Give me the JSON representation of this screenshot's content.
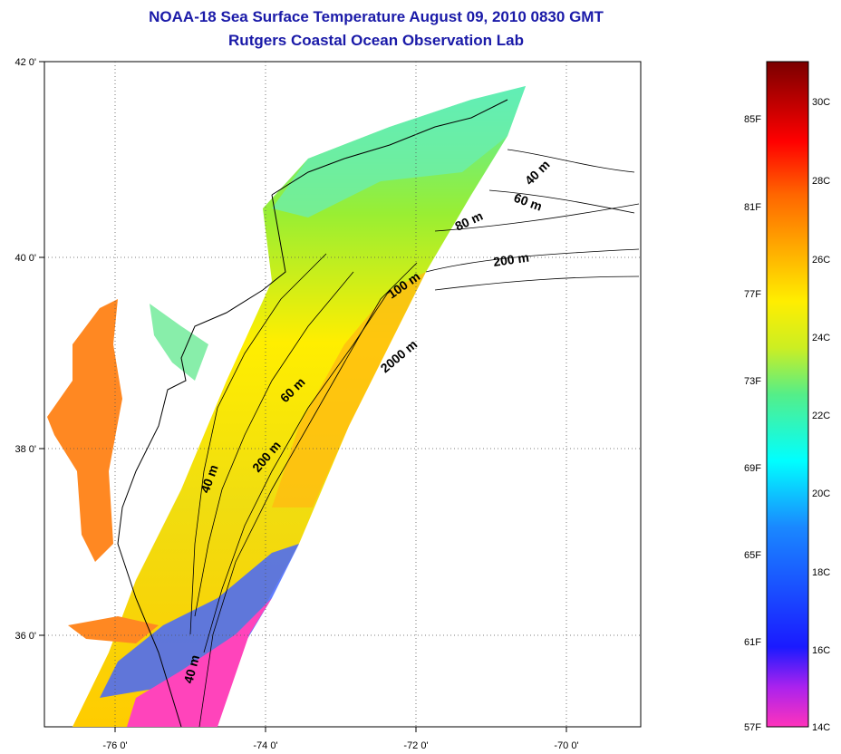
{
  "header": {
    "title": "NOAA-18 Sea Surface Temperature August 09, 2010 0830 GMT",
    "subtitle": "Rutgers Coastal Ocean Observation Lab"
  },
  "map": {
    "lon_ticks": [
      "-76 0'",
      "-74 0'",
      "-72 0'",
      "-70 0'"
    ],
    "lat_ticks": [
      "42 0'",
      "40 0'",
      "38 0'",
      "36 0'"
    ],
    "isobath_labels": [
      "40 m",
      "60 m",
      "80 m",
      "200 m",
      "100 m",
      "2000 m",
      "60 m",
      "200 m",
      "40 m",
      "40 m"
    ]
  },
  "colorbar": {
    "fahrenheit": [
      "85F",
      "81F",
      "77F",
      "73F",
      "69F",
      "65F",
      "61F",
      "57F"
    ],
    "celsius": [
      "30C",
      "28C",
      "26C",
      "24C",
      "22C",
      "20C",
      "18C",
      "16C",
      "14C"
    ],
    "stops": [
      "#ff33bb",
      "#8822ee",
      "#1a1aff",
      "#1a66ff",
      "#00ffff",
      "#55ee88",
      "#ccee22",
      "#ffee00",
      "#ffaa00",
      "#ff6600",
      "#ff0000",
      "#cc0000",
      "#7a0000"
    ]
  }
}
